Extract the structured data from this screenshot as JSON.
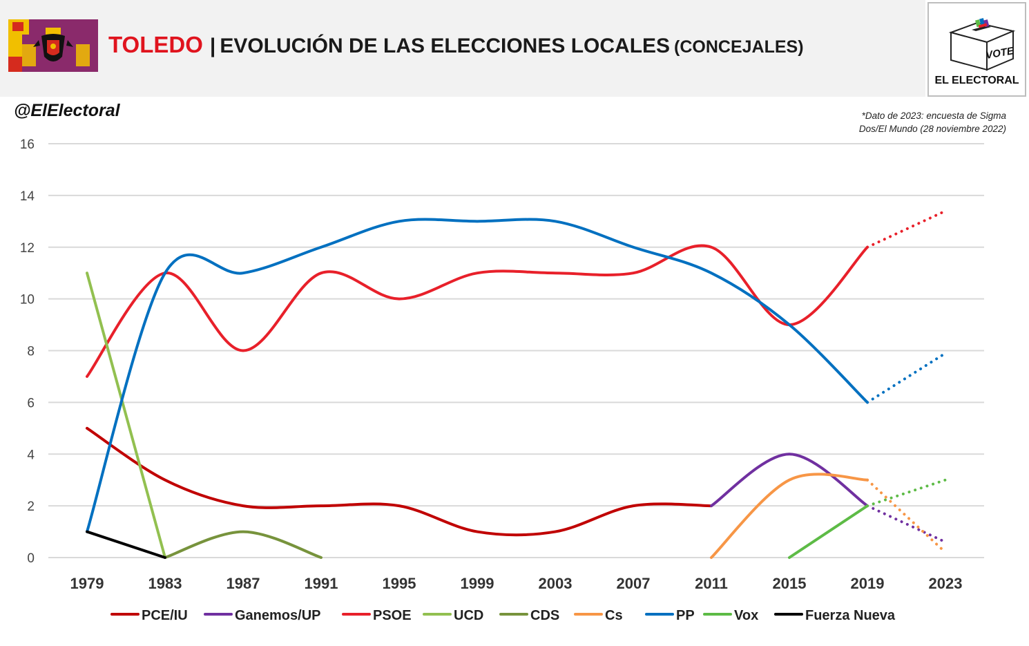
{
  "header": {
    "city": "TOLEDO",
    "separator": "|",
    "title": "EVOLUCIÓN DE LAS ELECCIONES LOCALES",
    "unit": "(CONCEJALES)"
  },
  "brand": {
    "handle": "@ElElectoral",
    "logo_ballot_text": "VOTE",
    "logo_name": "EL ELECTORAL"
  },
  "note_lines": [
    "*Dato de 2023: encuesta de Sigma",
    "Dos/El Mundo (28 noviembre 2022)"
  ],
  "colors": {
    "accent_red": "#e0141e",
    "header_bg": "#f2f2f2",
    "flag_purple": "#8a2a6b",
    "flag_red": "#d52b1e",
    "flag_yellow": "#f1bf00"
  },
  "chart_data": {
    "type": "line",
    "x": [
      1979,
      1983,
      1987,
      1991,
      1995,
      1999,
      2003,
      2007,
      2011,
      2015,
      2019,
      2023
    ],
    "ylim": [
      0,
      16
    ],
    "yticks": [
      0,
      2,
      4,
      6,
      8,
      10,
      12,
      14,
      16
    ],
    "grid": true,
    "legend_position": "bottom",
    "projected_from": 2019,
    "series": [
      {
        "name": "PCE/IU",
        "color": "#c00000",
        "points": [
          [
            1979,
            5
          ],
          [
            1983,
            3
          ],
          [
            1987,
            2
          ],
          [
            1991,
            2
          ],
          [
            1995,
            2
          ],
          [
            1999,
            1
          ],
          [
            2003,
            1
          ],
          [
            2007,
            2
          ],
          [
            2011,
            2
          ]
        ]
      },
      {
        "name": "Ganemos/UP",
        "color": "#7030a0",
        "points": [
          [
            2011,
            2
          ],
          [
            2015,
            4
          ],
          [
            2019,
            2
          ]
        ],
        "projection": [
          [
            2019,
            2
          ],
          [
            2023,
            0.6
          ]
        ]
      },
      {
        "name": "PSOE",
        "color": "#e8202a",
        "points": [
          [
            1979,
            7
          ],
          [
            1983,
            11
          ],
          [
            1987,
            8
          ],
          [
            1991,
            11
          ],
          [
            1995,
            10
          ],
          [
            1999,
            11
          ],
          [
            2003,
            11
          ],
          [
            2007,
            11
          ],
          [
            2011,
            12
          ],
          [
            2015,
            9
          ],
          [
            2019,
            12
          ]
        ],
        "projection": [
          [
            2019,
            12
          ],
          [
            2023,
            13.4
          ]
        ]
      },
      {
        "name": "UCD",
        "color": "#92c050",
        "points": [
          [
            1979,
            11
          ],
          [
            1983,
            0
          ]
        ]
      },
      {
        "name": "CDS",
        "color": "#77933c",
        "points": [
          [
            1983,
            0
          ],
          [
            1987,
            1
          ],
          [
            1991,
            0
          ]
        ]
      },
      {
        "name": "Cs",
        "color": "#f79646",
        "points": [
          [
            2011,
            0
          ],
          [
            2015,
            3
          ],
          [
            2019,
            3
          ]
        ],
        "projection": [
          [
            2019,
            3
          ],
          [
            2023,
            0.2
          ]
        ]
      },
      {
        "name": "PP",
        "color": "#0070c0",
        "points": [
          [
            1979,
            1
          ],
          [
            1983,
            11
          ],
          [
            1987,
            11
          ],
          [
            1991,
            12
          ],
          [
            1995,
            13
          ],
          [
            1999,
            13
          ],
          [
            2003,
            13
          ],
          [
            2007,
            12
          ],
          [
            2011,
            11
          ],
          [
            2015,
            9
          ],
          [
            2019,
            6
          ]
        ],
        "projection": [
          [
            2019,
            6
          ],
          [
            2023,
            7.9
          ]
        ]
      },
      {
        "name": "Vox",
        "color": "#5dbb46",
        "points": [
          [
            2015,
            0
          ],
          [
            2019,
            2
          ]
        ],
        "projection": [
          [
            2019,
            2
          ],
          [
            2023,
            3
          ]
        ]
      },
      {
        "name": "Fuerza Nueva",
        "color": "#000000",
        "points": [
          [
            1979,
            1
          ],
          [
            1983,
            0
          ]
        ]
      }
    ]
  }
}
